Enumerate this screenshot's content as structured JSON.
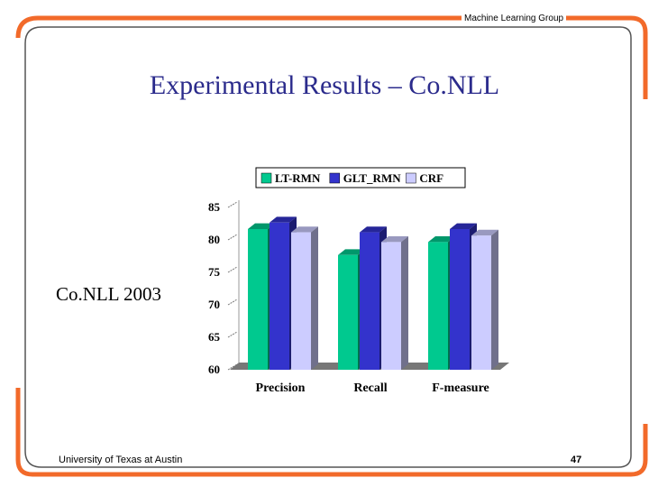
{
  "header": {
    "org": "Machine Learning Group"
  },
  "slide": {
    "title": "Experimental Results – Co.NLL",
    "side_label": "Co.NLL 2003"
  },
  "footer": {
    "university": "University of Texas at Austin",
    "page": "47"
  },
  "colors": {
    "frame": "#f26a2a",
    "title": "#2b2b8c",
    "lt_rmn": "#00c98f",
    "glt_rmn": "#3333cc",
    "crf": "#ccccff"
  },
  "chart_data": {
    "type": "bar",
    "categories": [
      "Precision",
      "Recall",
      "F-measure"
    ],
    "series": [
      {
        "name": "LT-RMN",
        "values": [
          82,
          78,
          80
        ]
      },
      {
        "name": "GLT_RMN",
        "values": [
          83,
          81.5,
          82
        ]
      },
      {
        "name": "CRF",
        "values": [
          81.5,
          80,
          81
        ]
      }
    ],
    "ylim": [
      60,
      85
    ],
    "yticks": [
      "60",
      "65",
      "70",
      "75",
      "80",
      "85"
    ],
    "legend": "top",
    "grid": false
  }
}
